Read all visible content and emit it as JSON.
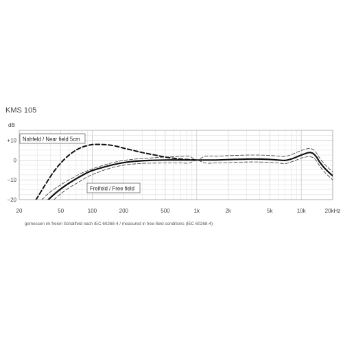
{
  "chart_data": {
    "type": "line",
    "title": "KMS 105",
    "ylabel": "dB",
    "xscale": "log",
    "xlim": [
      20,
      20000
    ],
    "ylim": [
      -20,
      15
    ],
    "grid": true,
    "x_ticks": [
      {
        "value": 20,
        "label": "20"
      },
      {
        "value": 50,
        "label": "50"
      },
      {
        "value": 100,
        "label": "100"
      },
      {
        "value": 200,
        "label": "200"
      },
      {
        "value": 500,
        "label": "500"
      },
      {
        "value": 1000,
        "label": "1k"
      },
      {
        "value": 2000,
        "label": "2k"
      },
      {
        "value": 5000,
        "label": "5k"
      },
      {
        "value": 10000,
        "label": "10k"
      },
      {
        "value": 20000,
        "label": "20kHz"
      }
    ],
    "y_ticks": [
      {
        "value": 10,
        "label": "+10"
      },
      {
        "value": 0,
        "label": "0"
      },
      {
        "value": -10,
        "label": "−10"
      },
      {
        "value": -20,
        "label": "−20"
      }
    ],
    "series": [
      {
        "name": "Freifeld / Free  field",
        "style": "solid",
        "x": [
          38,
          45,
          55,
          70,
          85,
          100,
          130,
          160,
          200,
          260,
          350,
          500,
          700,
          1000,
          1500,
          2000,
          3000,
          4000,
          5000,
          6000,
          7000,
          8000,
          9000,
          10000,
          11000,
          12000,
          13000,
          14000,
          15000,
          17000,
          20000
        ],
        "y": [
          -20,
          -16.5,
          -13,
          -9.5,
          -7,
          -5.3,
          -3.5,
          -2.3,
          -1.3,
          -0.6,
          -0.2,
          0,
          0,
          0,
          0,
          0.2,
          0.5,
          0.5,
          0.3,
          0,
          -0.2,
          0.5,
          1.5,
          2.5,
          3.3,
          3.8,
          3.3,
          1.5,
          -1,
          -4.5,
          -8
        ]
      },
      {
        "name": "",
        "style": "dashed-thin",
        "x": [
          33,
          40,
          50,
          65,
          80,
          100,
          130,
          160,
          200,
          260,
          350,
          500,
          700,
          850,
          1000,
          1200,
          1500,
          2000,
          3000,
          4000,
          5000,
          6000,
          7000,
          8000,
          9000,
          10000,
          11000,
          12000,
          13000,
          14000,
          15000,
          17000,
          20000
        ],
        "y": [
          -20,
          -16,
          -12.5,
          -9,
          -6.5,
          -4.5,
          -2.5,
          -1.2,
          -0.2,
          0.5,
          1,
          1.5,
          1.8,
          1.9,
          0,
          1.9,
          1.9,
          2.2,
          2.5,
          2.5,
          2.3,
          2,
          1.8,
          2.7,
          3.8,
          4.8,
          5.5,
          5.8,
          5.3,
          3.5,
          1,
          -2.5,
          -6
        ]
      },
      {
        "name": "",
        "style": "dashed-thin",
        "x": [
          43,
          50,
          60,
          75,
          90,
          110,
          140,
          170,
          220,
          280,
          350,
          500,
          700,
          850,
          1000,
          1200,
          1500,
          2000,
          3000,
          4000,
          5000,
          6000,
          7000,
          8000,
          9000,
          10000,
          11000,
          12000,
          13000,
          14000,
          15000,
          17000,
          20000
        ],
        "y": [
          -20,
          -17,
          -14,
          -11,
          -8.5,
          -6.5,
          -4.5,
          -3.3,
          -2.3,
          -1.8,
          -1.6,
          -1.5,
          -1.5,
          -1.5,
          0,
          -1.5,
          -1.5,
          -1.3,
          -1,
          -1,
          -1.2,
          -1.5,
          -1.8,
          -1,
          0,
          1,
          1.5,
          1.7,
          1.2,
          -0.5,
          -3,
          -6.5,
          -10
        ]
      },
      {
        "name": "Nahfeld / Near field  5cm",
        "style": "dashed-bold",
        "x": [
          29,
          35,
          42,
          50,
          60,
          70,
          80,
          90,
          100,
          115,
          130,
          150,
          175,
          200,
          250,
          300,
          400,
          500,
          700,
          1000
        ],
        "y": [
          -20,
          -13,
          -6.5,
          -1.5,
          2.5,
          5,
          6.5,
          7.3,
          7.8,
          7.9,
          7.8,
          7.5,
          6.8,
          6,
          4.8,
          3.8,
          2.5,
          1.5,
          0.5,
          0
        ]
      }
    ],
    "annotations": [
      "Nahfeld / Near field  5cm",
      "Freifeld / Free  field"
    ],
    "footnote": "gemessen im freien Schallfeld nach IEC 60268-4 / measured in free-field conditions (IEC 60268-4)"
  }
}
